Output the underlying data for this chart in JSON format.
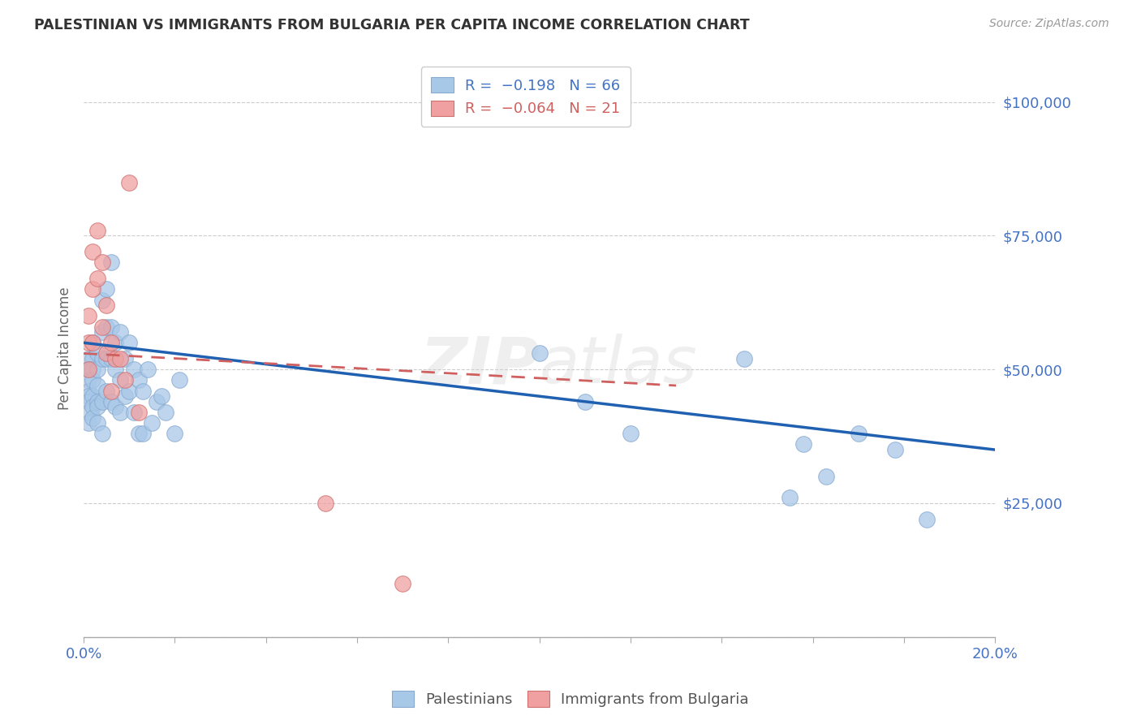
{
  "title": "PALESTINIAN VS IMMIGRANTS FROM BULGARIA PER CAPITA INCOME CORRELATION CHART",
  "source": "Source: ZipAtlas.com",
  "ylabel": "Per Capita Income",
  "yticks": [
    0,
    25000,
    50000,
    75000,
    100000
  ],
  "xlim": [
    0.0,
    0.2
  ],
  "ylim": [
    0,
    108000
  ],
  "blue_color": "#a8c8e8",
  "pink_color": "#f0a0a0",
  "trendline_blue": "#2060b0",
  "trendline_pink": "#d06060",
  "watermark": "ZIPatlas",
  "palestinians_x": [
    0.001,
    0.001,
    0.001,
    0.001,
    0.001,
    0.001,
    0.001,
    0.001,
    0.002,
    0.002,
    0.002,
    0.002,
    0.002,
    0.002,
    0.002,
    0.003,
    0.003,
    0.003,
    0.003,
    0.003,
    0.003,
    0.004,
    0.004,
    0.004,
    0.004,
    0.004,
    0.005,
    0.005,
    0.005,
    0.005,
    0.006,
    0.006,
    0.006,
    0.006,
    0.007,
    0.007,
    0.007,
    0.008,
    0.008,
    0.008,
    0.009,
    0.009,
    0.01,
    0.01,
    0.011,
    0.011,
    0.012,
    0.012,
    0.013,
    0.013,
    0.014,
    0.015,
    0.016,
    0.017,
    0.018,
    0.02,
    0.021,
    0.1,
    0.11,
    0.12,
    0.145,
    0.155,
    0.158,
    0.163,
    0.17,
    0.178,
    0.185
  ],
  "palestinians_y": [
    52000,
    50000,
    48000,
    46000,
    45000,
    44000,
    42000,
    40000,
    55000,
    52000,
    50000,
    48000,
    45000,
    43000,
    41000,
    53000,
    50000,
    47000,
    44000,
    43000,
    40000,
    63000,
    57000,
    52000,
    44000,
    38000,
    65000,
    58000,
    52000,
    46000,
    70000,
    58000,
    52000,
    44000,
    55000,
    50000,
    43000,
    57000,
    48000,
    42000,
    52000,
    45000,
    55000,
    46000,
    50000,
    42000,
    48000,
    38000,
    46000,
    38000,
    50000,
    40000,
    44000,
    45000,
    42000,
    38000,
    48000,
    53000,
    44000,
    38000,
    52000,
    26000,
    36000,
    30000,
    38000,
    35000,
    22000
  ],
  "bulgaria_x": [
    0.001,
    0.001,
    0.001,
    0.002,
    0.002,
    0.002,
    0.003,
    0.003,
    0.004,
    0.004,
    0.005,
    0.005,
    0.006,
    0.006,
    0.007,
    0.008,
    0.009,
    0.01,
    0.012,
    0.053,
    0.07
  ],
  "bulgaria_y": [
    60000,
    55000,
    50000,
    72000,
    65000,
    55000,
    76000,
    67000,
    70000,
    58000,
    62000,
    53000,
    55000,
    46000,
    52000,
    52000,
    48000,
    85000,
    42000,
    25000,
    10000
  ]
}
